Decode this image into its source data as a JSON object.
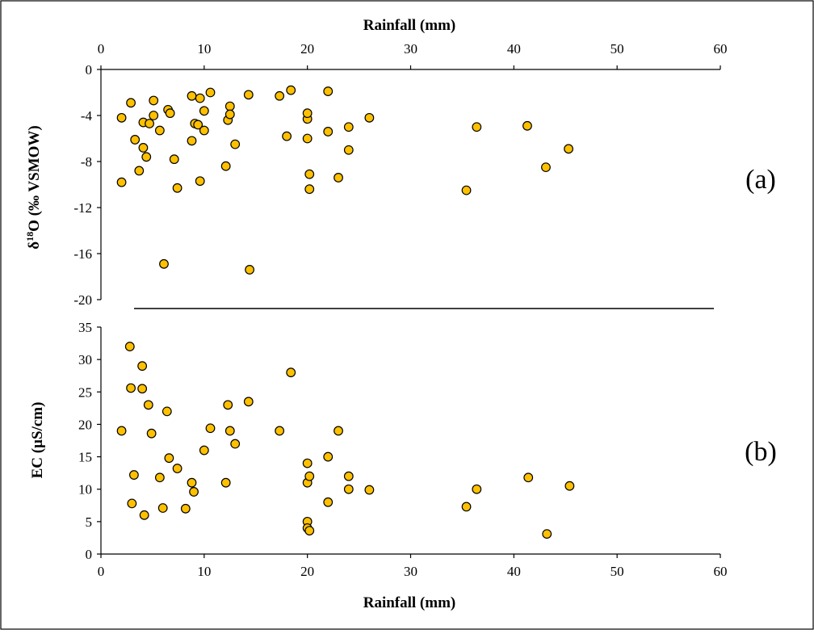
{
  "chart_data": [
    {
      "type": "scatter",
      "panel_label": "(a)",
      "xlabel": "Rainfall (mm)",
      "ylabel_prefix": "δ",
      "ylabel_sup": "18",
      "ylabel_suffix": "O (‰ VSMOW)",
      "x_axis_position": "top",
      "xlim": [
        0,
        60
      ],
      "ylim": [
        -20,
        0
      ],
      "xticks": [
        "0",
        "10",
        "20",
        "30",
        "40",
        "50",
        "60"
      ],
      "yticks": [
        "0",
        "-4",
        "-8",
        "-12",
        "-16",
        "-20"
      ],
      "marker_fill": "#FFC000",
      "marker_edge": "#000000",
      "points": [
        [
          2.0,
          -4.2
        ],
        [
          2.0,
          -9.8
        ],
        [
          2.9,
          -2.9
        ],
        [
          3.3,
          -6.1
        ],
        [
          3.7,
          -8.8
        ],
        [
          4.1,
          -4.6
        ],
        [
          4.1,
          -6.8
        ],
        [
          4.4,
          -7.6
        ],
        [
          4.7,
          -4.7
        ],
        [
          5.1,
          -2.7
        ],
        [
          5.1,
          -4.0
        ],
        [
          5.7,
          -5.3
        ],
        [
          6.1,
          -16.9
        ],
        [
          6.5,
          -3.5
        ],
        [
          6.7,
          -3.8
        ],
        [
          7.1,
          -7.8
        ],
        [
          7.4,
          -10.3
        ],
        [
          8.8,
          -6.2
        ],
        [
          8.8,
          -2.3
        ],
        [
          9.1,
          -4.7
        ],
        [
          9.4,
          -4.8
        ],
        [
          9.6,
          -9.7
        ],
        [
          9.6,
          -2.5
        ],
        [
          10.0,
          -5.3
        ],
        [
          10.0,
          -3.6
        ],
        [
          10.6,
          -2.0
        ],
        [
          12.1,
          -8.4
        ],
        [
          12.3,
          -4.4
        ],
        [
          12.5,
          -3.2
        ],
        [
          12.5,
          -3.9
        ],
        [
          13.0,
          -6.5
        ],
        [
          14.3,
          -2.2
        ],
        [
          14.4,
          -17.4
        ],
        [
          17.3,
          -2.3
        ],
        [
          18.0,
          -5.8
        ],
        [
          18.4,
          -1.8
        ],
        [
          20.0,
          -4.3
        ],
        [
          20.0,
          -3.8
        ],
        [
          20.0,
          -6.0
        ],
        [
          20.2,
          -9.1
        ],
        [
          20.2,
          -10.4
        ],
        [
          22.0,
          -5.4
        ],
        [
          22.0,
          -1.9
        ],
        [
          23.0,
          -9.4
        ],
        [
          24.0,
          -5.0
        ],
        [
          24.0,
          -7.0
        ],
        [
          26.0,
          -4.2
        ],
        [
          35.4,
          -10.5
        ],
        [
          36.4,
          -5.0
        ],
        [
          41.3,
          -4.9
        ],
        [
          43.1,
          -8.5
        ],
        [
          45.3,
          -6.9
        ]
      ]
    },
    {
      "type": "scatter",
      "panel_label": "(b)",
      "xlabel": "Rainfall (mm)",
      "ylabel": "EC (µS/cm)",
      "x_axis_position": "bottom",
      "xlim": [
        0,
        60
      ],
      "ylim": [
        0,
        35
      ],
      "xticks": [
        "0",
        "10",
        "20",
        "30",
        "40",
        "50",
        "60"
      ],
      "yticks": [
        "0",
        "5",
        "10",
        "15",
        "20",
        "25",
        "30",
        "35"
      ],
      "marker_fill": "#FFC000",
      "marker_edge": "#000000",
      "points": [
        [
          2.0,
          19.0
        ],
        [
          2.8,
          32.0
        ],
        [
          2.9,
          25.6
        ],
        [
          3.0,
          7.8
        ],
        [
          3.2,
          12.2
        ],
        [
          4.0,
          29.0
        ],
        [
          4.0,
          25.5
        ],
        [
          4.2,
          6.0
        ],
        [
          4.6,
          23.0
        ],
        [
          4.9,
          18.6
        ],
        [
          5.7,
          11.8
        ],
        [
          6.0,
          7.1
        ],
        [
          6.4,
          22.0
        ],
        [
          6.6,
          14.8
        ],
        [
          7.4,
          13.2
        ],
        [
          8.2,
          7.0
        ],
        [
          8.8,
          11.0
        ],
        [
          9.0,
          9.6
        ],
        [
          10.0,
          16.0
        ],
        [
          10.6,
          19.4
        ],
        [
          12.1,
          11.0
        ],
        [
          12.3,
          23.0
        ],
        [
          12.5,
          19.0
        ],
        [
          13.0,
          17.0
        ],
        [
          14.3,
          23.5
        ],
        [
          17.3,
          19.0
        ],
        [
          18.4,
          28.0
        ],
        [
          20.0,
          14.0
        ],
        [
          20.0,
          11.0
        ],
        [
          20.2,
          12.0
        ],
        [
          20.0,
          5.0
        ],
        [
          20.0,
          4.0
        ],
        [
          20.2,
          3.6
        ],
        [
          22.0,
          15.0
        ],
        [
          22.0,
          8.0
        ],
        [
          23.0,
          19.0
        ],
        [
          24.0,
          12.0
        ],
        [
          24.0,
          10.0
        ],
        [
          26.0,
          9.9
        ],
        [
          35.4,
          7.3
        ],
        [
          36.4,
          10.0
        ],
        [
          41.4,
          11.8
        ],
        [
          43.2,
          3.1
        ],
        [
          45.4,
          10.5
        ]
      ]
    }
  ]
}
